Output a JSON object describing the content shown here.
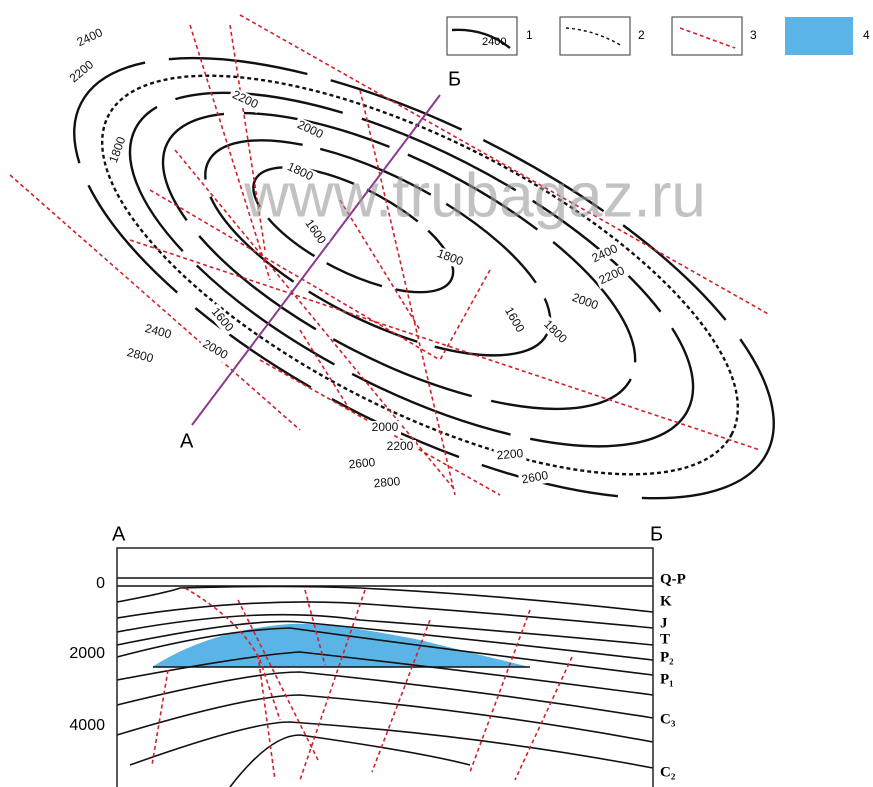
{
  "watermark": "www.trubagaz.ru",
  "legend": {
    "sample": "2400",
    "items": [
      "1",
      "2",
      "3",
      "4"
    ]
  },
  "map": {
    "point_a": "А",
    "point_b": "Б",
    "contour_labels": [
      "2400",
      "2200",
      "1800",
      "2200",
      "2000",
      "1800",
      "1600",
      "1800",
      "2400",
      "2200",
      "2000",
      "1600",
      "1800",
      "1600",
      "2000",
      "2400",
      "2800",
      "2000",
      "2200",
      "2600",
      "2200",
      "2800",
      "2600"
    ]
  },
  "section": {
    "left": "А",
    "right": "Б",
    "depth_labels": [
      "0",
      "2000",
      "4000"
    ],
    "layers": [
      "Q-P",
      "K",
      "J",
      "T",
      "P₂",
      "P₁",
      "C₃",
      "C₂"
    ]
  }
}
